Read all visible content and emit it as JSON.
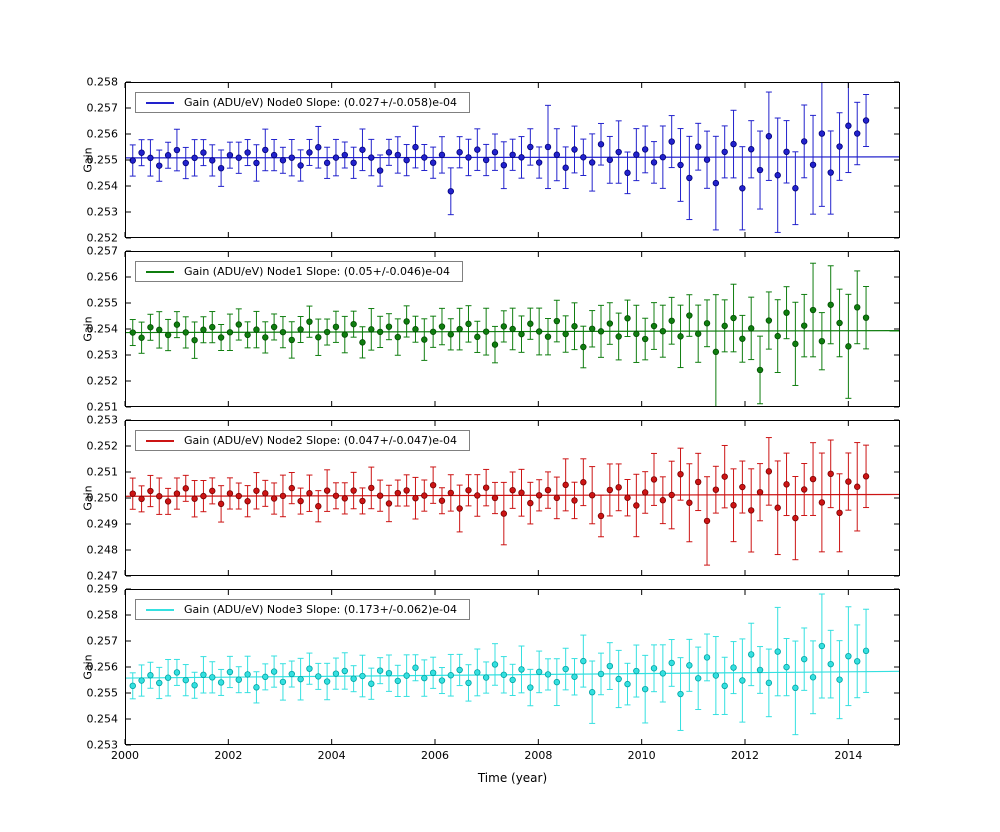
{
  "figure": {
    "background": "#ffffff"
  },
  "chart_data": {
    "type": "scatter",
    "xlabel": "Time (year)",
    "x_range": [
      2000,
      2015
    ],
    "x_ticks": [
      "2000",
      "2002",
      "2004",
      "2006",
      "2008",
      "2010",
      "2012",
      "2014"
    ],
    "grid": false,
    "legend_position": "upper left",
    "marker": "circle-with-errorbars",
    "fit_reference_year": 2007.3,
    "points_x_start": 2000.15,
    "points_x_step": 0.171,
    "panels": [
      {
        "name": "Node0",
        "ylabel": "Gain",
        "legend": "Gain (ADU/eV) Node0 Slope: (0.027+/-0.058)e-04",
        "color": "#2222cc",
        "edge": "#00007a",
        "ylim": [
          0.252,
          0.258
        ],
        "ytick_labels": [
          "0.252",
          "0.253",
          "0.254",
          "0.255",
          "0.256",
          "0.257",
          "0.258"
        ],
        "fit_mean": 0.2551,
        "slope_e4_per_year": 0.027,
        "dy_e4": [
          -1,
          2,
          0,
          -3,
          1,
          3,
          -2,
          0,
          2,
          -1,
          -4,
          1,
          0,
          2,
          -2,
          3,
          1,
          -1,
          0,
          -3,
          2,
          4,
          -2,
          0,
          1,
          -2,
          3,
          0,
          -5,
          2,
          1,
          -1,
          4,
          0,
          -2,
          1,
          -13,
          2,
          0,
          3,
          -1,
          2,
          -3,
          1,
          0,
          4,
          -2,
          4,
          1,
          -4,
          3,
          0,
          -2,
          5,
          -1,
          2,
          -6,
          1,
          3,
          -2,
          0,
          6,
          -3,
          -8,
          4,
          -1,
          -10,
          2,
          5,
          -12,
          3,
          -5,
          8,
          -7,
          2,
          -12,
          6,
          -3,
          9,
          -6,
          4,
          12,
          9,
          14
        ],
        "err_e4": [
          6,
          5,
          7,
          6,
          5,
          8,
          6,
          7,
          5,
          6,
          7,
          5,
          6,
          5,
          7,
          8,
          6,
          5,
          7,
          6,
          5,
          8,
          6,
          7,
          5,
          6,
          8,
          7,
          6,
          5,
          7,
          6,
          8,
          5,
          6,
          7,
          9,
          6,
          7,
          8,
          6,
          7,
          9,
          6,
          8,
          7,
          6,
          16,
          10,
          8,
          9,
          7,
          11,
          8,
          9,
          12,
          8,
          10,
          9,
          8,
          12,
          10,
          14,
          16,
          9,
          11,
          18,
          10,
          13,
          16,
          11,
          15,
          17,
          22,
          12,
          14,
          14,
          19,
          28,
          16,
          13,
          18,
          12,
          10
        ]
      },
      {
        "name": "Node1",
        "ylabel": "Gain",
        "legend": "Gain (ADU/eV) Node1 Slope: (0.05+/-0.046)e-04",
        "color": "#0f7d0f",
        "edge": "#004d00",
        "ylim": [
          0.251,
          0.257
        ],
        "ytick_labels": [
          "0.251",
          "0.252",
          "0.253",
          "0.254",
          "0.255",
          "0.256",
          "0.257"
        ],
        "fit_mean": 0.2539,
        "slope_e4_per_year": 0.05,
        "dy_e4": [
          0,
          -2,
          2,
          1,
          -1,
          3,
          0,
          -3,
          1,
          2,
          -2,
          0,
          3,
          -1,
          1,
          -2,
          2,
          0,
          -3,
          1,
          4,
          -2,
          0,
          2,
          -1,
          3,
          -4,
          1,
          0,
          2,
          -2,
          4,
          1,
          -3,
          0,
          2,
          -1,
          1,
          3,
          -2,
          0,
          -5,
          2,
          1,
          -1,
          3,
          0,
          -2,
          4,
          -1,
          2,
          -6,
          1,
          0,
          3,
          -2,
          5,
          -1,
          -3,
          2,
          0,
          4,
          -2,
          6,
          -1,
          3,
          -8,
          2,
          5,
          -3,
          1,
          -15,
          4,
          -2,
          7,
          -5,
          2,
          8,
          -4,
          10,
          3,
          -6,
          9,
          5
        ],
        "err_e4": [
          5,
          6,
          5,
          7,
          6,
          5,
          6,
          7,
          5,
          6,
          5,
          7,
          6,
          5,
          7,
          6,
          5,
          6,
          7,
          5,
          6,
          7,
          5,
          6,
          7,
          5,
          6,
          8,
          6,
          5,
          7,
          6,
          5,
          8,
          6,
          7,
          6,
          8,
          7,
          6,
          9,
          7,
          6,
          8,
          7,
          6,
          9,
          7,
          8,
          7,
          9,
          8,
          7,
          10,
          8,
          9,
          7,
          11,
          8,
          9,
          10,
          9,
          12,
          8,
          11,
          9,
          22,
          10,
          13,
          9,
          12,
          13,
          11,
          14,
          10,
          16,
          12,
          18,
          11,
          15,
          13,
          20,
          14,
          12
        ]
      },
      {
        "name": "Node2",
        "ylabel": "Gain",
        "legend": "Gain (ADU/eV) Node2 Slope: (0.047+/-0.047)e-04",
        "color": "#cc1414",
        "edge": "#7a0000",
        "ylim": [
          0.247,
          0.253
        ],
        "ytick_labels": [
          "0.247",
          "0.248",
          "0.249",
          "0.250",
          "0.251",
          "0.252",
          "0.253"
        ],
        "fit_mean": 0.2501,
        "slope_e4_per_year": 0.047,
        "dy_e4": [
          1,
          -1,
          2,
          0,
          -2,
          1,
          3,
          -1,
          0,
          2,
          -3,
          1,
          0,
          -2,
          2,
          1,
          -1,
          0,
          3,
          -2,
          1,
          -4,
          2,
          0,
          -1,
          2,
          -2,
          3,
          0,
          -3,
          1,
          2,
          -1,
          0,
          4,
          -2,
          1,
          -5,
          2,
          0,
          3,
          -1,
          -7,
          2,
          1,
          -3,
          0,
          2,
          -1,
          4,
          -2,
          5,
          0,
          -8,
          2,
          3,
          -1,
          -4,
          1,
          6,
          -2,
          0,
          8,
          -3,
          5,
          -10,
          2,
          7,
          -4,
          3,
          -6,
          1,
          9,
          -5,
          4,
          -9,
          2,
          6,
          -3,
          8,
          -7,
          5,
          3,
          7
        ],
        "err_e4": [
          6,
          5,
          6,
          7,
          5,
          6,
          5,
          7,
          6,
          5,
          7,
          6,
          5,
          6,
          7,
          5,
          6,
          8,
          6,
          5,
          7,
          6,
          8,
          5,
          6,
          7,
          5,
          8,
          6,
          7,
          5,
          6,
          8,
          6,
          7,
          5,
          7,
          9,
          6,
          8,
          7,
          6,
          12,
          7,
          9,
          8,
          6,
          7,
          8,
          10,
          7,
          9,
          11,
          8,
          10,
          9,
          7,
          12,
          8,
          10,
          9,
          13,
          10,
          15,
          11,
          17,
          9,
          12,
          14,
          10,
          16,
          11,
          13,
          18,
          12,
          16,
          10,
          14,
          19,
          13,
          15,
          11,
          17,
          12
        ]
      },
      {
        "name": "Node3",
        "ylabel": "Gain",
        "legend": "Gain (ADU/eV) Node3 Slope: (0.173+/-0.062)e-04",
        "color": "#35e0e0",
        "edge": "#00a3a3",
        "ylim": [
          0.253,
          0.259
        ],
        "ytick_labels": [
          "0.253",
          "0.254",
          "0.255",
          "0.256",
          "0.257",
          "0.258",
          "0.259"
        ],
        "fit_mean": 0.2557,
        "slope_e4_per_year": 0.173,
        "dy_e4": [
          -3,
          -1,
          1,
          -2,
          0,
          2,
          -1,
          -3,
          1,
          0,
          -2,
          2,
          -1,
          1,
          -4,
          0,
          2,
          -2,
          1,
          -1,
          3,
          0,
          -2,
          1,
          2,
          -1,
          0,
          -3,
          2,
          1,
          -2,
          0,
          3,
          -1,
          1,
          -2,
          0,
          2,
          -3,
          1,
          -1,
          4,
          0,
          -2,
          2,
          -5,
          1,
          0,
          -3,
          2,
          -1,
          5,
          -7,
          0,
          3,
          -2,
          -4,
          1,
          -6,
          2,
          0,
          4,
          -8,
          3,
          -2,
          6,
          -1,
          -5,
          2,
          -3,
          7,
          1,
          -4,
          8,
          2,
          -6,
          5,
          -2,
          10,
          3,
          -3,
          6,
          4,
          8
        ],
        "err_e4": [
          5,
          6,
          5,
          6,
          7,
          5,
          6,
          5,
          7,
          6,
          5,
          6,
          5,
          7,
          6,
          5,
          6,
          7,
          5,
          8,
          6,
          5,
          7,
          6,
          7,
          5,
          8,
          6,
          5,
          7,
          6,
          8,
          5,
          7,
          6,
          5,
          8,
          6,
          7,
          9,
          6,
          8,
          7,
          6,
          9,
          7,
          8,
          6,
          9,
          8,
          7,
          10,
          12,
          8,
          9,
          11,
          8,
          10,
          13,
          9,
          11,
          9,
          14,
          10,
          12,
          9,
          15,
          11,
          10,
          16,
          12,
          9,
          13,
          17,
          11,
          18,
          12,
          14,
          20,
          13,
          15,
          19,
          14,
          16
        ]
      }
    ]
  }
}
